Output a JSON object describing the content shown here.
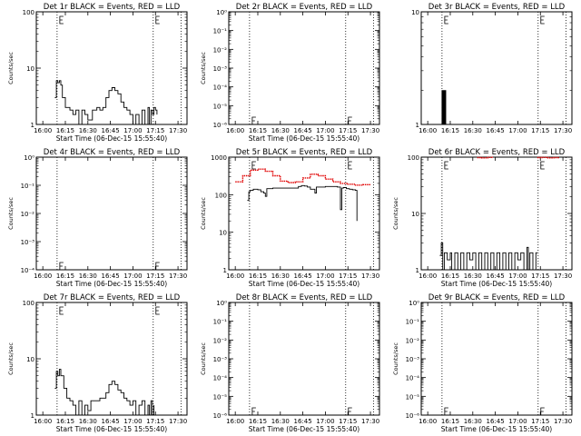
{
  "x_tick_labels": [
    "16:00",
    "16:15",
    "16:30",
    "16:45",
    "17:00",
    "17:15",
    "17:30"
  ],
  "colors": {
    "events": "#000000",
    "lld": "#e00000",
    "background": "#ffffff",
    "axes": "#000000"
  },
  "chart_data": [
    {
      "id": "det1r",
      "type": "line",
      "title": "Det 1r BLACK = Events, RED = LLD",
      "xlabel": "Start Time (06-Dec-15 15:55:40)",
      "ylabel": "Counts/sec",
      "xlim": [
        "15:55:40",
        "17:36:00"
      ],
      "ylim": [
        1,
        100
      ],
      "yscale": "log",
      "y_tick_labels": [
        "1",
        "10",
        "100"
      ],
      "x_tick_labels": [
        "16:00",
        "16:15",
        "16:30",
        "16:45",
        "17:00",
        "17:15",
        "17:30"
      ],
      "vlines": [
        "16:09:30",
        "17:13:30",
        "17:32:00"
      ],
      "series": [
        {
          "color": "events",
          "points": [
            [
              "16:08",
              3
            ],
            [
              "16:09",
              6
            ],
            [
              "16:10",
              5.5
            ],
            [
              "16:11",
              6
            ],
            [
              "16:12",
              5
            ],
            [
              "16:13",
              3
            ],
            [
              "16:15",
              2
            ],
            [
              "16:18",
              1.8
            ],
            [
              "16:20",
              1.5
            ],
            [
              "16:22",
              1.8
            ],
            [
              "16:24",
              1
            ],
            [
              "16:26",
              1.8
            ],
            [
              "16:28",
              1.5
            ],
            [
              "16:30",
              1.2
            ],
            [
              "16:33",
              1.8
            ],
            [
              "16:36",
              2
            ],
            [
              "16:38",
              1.8
            ],
            [
              "16:40",
              2
            ],
            [
              "16:42",
              3
            ],
            [
              "16:44",
              4
            ],
            [
              "16:46",
              4.5
            ],
            [
              "16:48",
              4
            ],
            [
              "16:50",
              3.5
            ],
            [
              "16:52",
              2.5
            ],
            [
              "16:54",
              2
            ],
            [
              "16:56",
              1.8
            ],
            [
              "16:58",
              1.5
            ],
            [
              "17:00",
              1
            ],
            [
              "17:02",
              1.5
            ],
            [
              "17:04",
              1
            ],
            [
              "17:06",
              1.8
            ],
            [
              "17:08",
              1
            ],
            [
              "17:10",
              2
            ],
            [
              "17:11",
              1
            ],
            [
              "17:12",
              1.8
            ],
            [
              "17:13",
              1.5
            ],
            [
              "17:14",
              2
            ],
            [
              "17:15",
              1.8
            ],
            [
              "17:16",
              1.5
            ]
          ]
        }
      ]
    },
    {
      "id": "det2r",
      "type": "line",
      "title": "Det 2r BLACK = Events, RED = LLD",
      "xlabel": "Start Time (06-Dec-15 15:55:40)",
      "ylabel": "Counts/sec",
      "xlim": [
        "15:55:40",
        "17:36:00"
      ],
      "ylim": [
        1,
        1e-06
      ],
      "yscale": "log",
      "y_tick_labels": [
        "10⁻⁶",
        "10⁻⁵",
        "10⁻⁴",
        "10⁻³",
        "10⁻²",
        "10⁻¹",
        "10⁰"
      ],
      "x_tick_labels": [
        "16:00",
        "16:15",
        "16:30",
        "16:45",
        "17:00",
        "17:15",
        "17:30"
      ],
      "vlines": [
        "16:09:30",
        "17:13:30",
        "17:32:00"
      ],
      "series": []
    },
    {
      "id": "det3r",
      "type": "line",
      "title": "Det 3r BLACK = Events, RED = LLD",
      "xlabel": "",
      "ylabel": "",
      "xlim": [
        "15:55:40",
        "17:36:00"
      ],
      "ylim": [
        1,
        10
      ],
      "yscale": "log",
      "y_tick_labels": [
        "1",
        "10"
      ],
      "x_tick_labels": [
        "16:00",
        "16:15",
        "16:30",
        "16:45",
        "17:00",
        "17:15",
        "17:30"
      ],
      "vlines": [
        "16:09:30",
        "17:13:30",
        "17:32:00"
      ],
      "series": [
        {
          "color": "events",
          "points": [
            [
              "16:09",
              1
            ],
            [
              "16:09:30",
              2
            ],
            [
              "16:10",
              1
            ],
            [
              "16:10:30",
              2
            ],
            [
              "16:11",
              1
            ],
            [
              "16:11:30",
              2
            ],
            [
              "16:12",
              1
            ]
          ]
        }
      ]
    },
    {
      "id": "det4r",
      "type": "line",
      "title": "Det 4r BLACK = Events, RED = LLD",
      "xlabel": "Start Time (06-Dec-15 15:55:40)",
      "ylabel": "Counts/sec",
      "xlim": [
        "15:55:40",
        "17:36:00"
      ],
      "ylim": [
        1,
        0.0001
      ],
      "yscale": "log",
      "y_tick_labels": [
        "10⁻⁴",
        "10⁻³",
        "10⁻²",
        "10⁻¹",
        "10⁰"
      ],
      "x_tick_labels": [
        "16:00",
        "16:15",
        "16:30",
        "16:45",
        "17:00",
        "17:15",
        "17:30"
      ],
      "vlines": [
        "16:09:30",
        "17:13:30",
        "17:32:00"
      ],
      "series": []
    },
    {
      "id": "det5r",
      "type": "line",
      "title": "Det 5r BLACK = Events, RED = LLD",
      "xlabel": "Start Time (06-Dec-15 15:55:40)",
      "ylabel": "Counts/sec",
      "xlim": [
        "15:55:40",
        "17:36:00"
      ],
      "ylim": [
        1,
        1000
      ],
      "yscale": "log",
      "y_tick_labels": [
        "1",
        "10",
        "100",
        "1000"
      ],
      "x_tick_labels": [
        "16:00",
        "16:15",
        "16:30",
        "16:45",
        "17:00",
        "17:15",
        "17:30"
      ],
      "vlines": [
        "16:09:30",
        "17:13:30",
        "17:32:00"
      ],
      "series": [
        {
          "color": "lld",
          "points": [
            [
              "16:00",
              220
            ],
            [
              "16:05",
              320
            ],
            [
              "16:10",
              450
            ],
            [
              "16:15",
              480
            ],
            [
              "16:20",
              420
            ],
            [
              "16:25",
              320
            ],
            [
              "16:30",
              230
            ],
            [
              "16:35",
              210
            ],
            [
              "16:40",
              220
            ],
            [
              "16:45",
              280
            ],
            [
              "16:50",
              350
            ],
            [
              "16:55",
              320
            ],
            [
              "17:00",
              260
            ],
            [
              "17:05",
              220
            ],
            [
              "17:10",
              200
            ],
            [
              "17:15",
              190
            ],
            [
              "17:20",
              180
            ],
            [
              "17:25",
              185
            ],
            [
              "17:30",
              190
            ]
          ]
        },
        {
          "color": "events",
          "points": [
            [
              "16:08",
              70
            ],
            [
              "16:09",
              120
            ],
            [
              "16:10",
              130
            ],
            [
              "16:12",
              140
            ],
            [
              "16:15",
              135
            ],
            [
              "16:17",
              120
            ],
            [
              "16:19",
              110
            ],
            [
              "16:20",
              90
            ],
            [
              "16:21",
              145
            ],
            [
              "16:25",
              150
            ],
            [
              "16:30",
              150
            ],
            [
              "16:35",
              150
            ],
            [
              "16:38",
              150
            ],
            [
              "16:40",
              150
            ],
            [
              "16:42",
              165
            ],
            [
              "16:44",
              175
            ],
            [
              "16:46",
              170
            ],
            [
              "16:48",
              160
            ],
            [
              "16:50",
              140
            ],
            [
              "16:53",
              110
            ],
            [
              "16:54",
              160
            ],
            [
              "17:00",
              165
            ],
            [
              "17:05",
              165
            ],
            [
              "17:08",
              160
            ],
            [
              "17:10",
              40
            ],
            [
              "17:11",
              150
            ],
            [
              "17:12",
              155
            ],
            [
              "17:14",
              145
            ],
            [
              "17:16",
              140
            ],
            [
              "17:18",
              135
            ],
            [
              "17:20",
              130
            ],
            [
              "17:21",
              20
            ]
          ]
        }
      ]
    },
    {
      "id": "det6r",
      "type": "line",
      "title": "Det 6r BLACK = Events, RED = LLD",
      "xlabel": "Start Time (06-Dec-15 15:55:40)",
      "ylabel": "Counts/sec",
      "xlim": [
        "15:55:40",
        "17:36:00"
      ],
      "ylim": [
        1,
        100
      ],
      "yscale": "log",
      "y_tick_labels": [
        "1",
        "10",
        "100"
      ],
      "x_tick_labels": [
        "16:00",
        "16:15",
        "16:30",
        "16:45",
        "17:00",
        "17:15",
        "17:30"
      ],
      "vlines": [
        "16:09:30",
        "17:13:30",
        "17:32:00"
      ],
      "series": [
        {
          "color": "lld",
          "points": [
            [
              "16:33",
              98
            ],
            [
              "16:36",
              97
            ],
            [
              "16:40",
              99
            ],
            [
              "16:43",
              98
            ]
          ]
        },
        {
          "color": "lld",
          "points": [
            [
              "17:13",
              98
            ],
            [
              "17:16",
              99
            ],
            [
              "17:20",
              97
            ],
            [
              "17:24",
              98
            ],
            [
              "17:27",
              99
            ]
          ]
        },
        {
          "color": "events",
          "points": [
            [
              "16:08",
              1.8
            ],
            [
              "16:09",
              3
            ],
            [
              "16:10",
              1
            ],
            [
              "16:11",
              2
            ],
            [
              "16:13",
              1.5
            ],
            [
              "16:15",
              2
            ],
            [
              "16:16",
              1
            ],
            [
              "16:18",
              2
            ],
            [
              "16:20",
              1
            ],
            [
              "16:22",
              2
            ],
            [
              "16:24",
              1
            ],
            [
              "16:26",
              2
            ],
            [
              "16:28",
              1.5
            ],
            [
              "16:30",
              2
            ],
            [
              "16:32",
              1
            ],
            [
              "16:34",
              2
            ],
            [
              "16:36",
              1
            ],
            [
              "16:38",
              2
            ],
            [
              "16:40",
              1
            ],
            [
              "16:42",
              2
            ],
            [
              "16:44",
              1
            ],
            [
              "16:46",
              2
            ],
            [
              "16:48",
              1
            ],
            [
              "16:50",
              2
            ],
            [
              "16:52",
              1
            ],
            [
              "16:54",
              2
            ],
            [
              "16:56",
              1
            ],
            [
              "16:58",
              2
            ],
            [
              "17:00",
              1.5
            ],
            [
              "17:02",
              2
            ],
            [
              "17:04",
              1
            ],
            [
              "17:06",
              2.5
            ],
            [
              "17:07",
              1
            ],
            [
              "17:08",
              2
            ],
            [
              "17:10",
              1
            ],
            [
              "17:12",
              2
            ],
            [
              "17:13",
              2
            ]
          ]
        }
      ]
    },
    {
      "id": "det7r",
      "type": "line",
      "title": "Det 7r BLACK = Events, RED = LLD",
      "xlabel": "Start Time (06-Dec-15 15:55:40)",
      "ylabel": "Counts/sec",
      "xlim": [
        "15:55:40",
        "17:36:00"
      ],
      "ylim": [
        1,
        100
      ],
      "yscale": "log",
      "y_tick_labels": [
        "1",
        "10",
        "100"
      ],
      "x_tick_labels": [
        "16:00",
        "16:15",
        "16:30",
        "16:45",
        "17:00",
        "17:15",
        "17:30"
      ],
      "vlines": [
        "16:09:30",
        "17:13:30",
        "17:32:00"
      ],
      "series": [
        {
          "color": "events",
          "points": [
            [
              "16:08",
              3
            ],
            [
              "16:09",
              6
            ],
            [
              "16:10",
              5
            ],
            [
              "16:11",
              6.5
            ],
            [
              "16:12",
              5
            ],
            [
              "16:14",
              3
            ],
            [
              "16:16",
              2
            ],
            [
              "16:18",
              1.8
            ],
            [
              "16:20",
              1.5
            ],
            [
              "16:22",
              1
            ],
            [
              "16:24",
              1.8
            ],
            [
              "16:26",
              1
            ],
            [
              "16:28",
              1.5
            ],
            [
              "16:30",
              1.2
            ],
            [
              "16:32",
              1.8
            ],
            [
              "16:35",
              1.8
            ],
            [
              "16:38",
              2
            ],
            [
              "16:40",
              2
            ],
            [
              "16:42",
              2.5
            ],
            [
              "16:44",
              3.5
            ],
            [
              "16:46",
              4
            ],
            [
              "16:48",
              3.5
            ],
            [
              "16:50",
              2.8
            ],
            [
              "16:52",
              2.5
            ],
            [
              "16:54",
              2
            ],
            [
              "16:56",
              1.8
            ],
            [
              "16:58",
              1.5
            ],
            [
              "17:00",
              1.8
            ],
            [
              "17:02",
              1
            ],
            [
              "17:04",
              1.5
            ],
            [
              "17:06",
              1.8
            ],
            [
              "17:08",
              1
            ],
            [
              "17:10",
              1.5
            ],
            [
              "17:11",
              1
            ],
            [
              "17:12",
              1.8
            ],
            [
              "17:13",
              1
            ],
            [
              "17:14",
              1.5
            ]
          ]
        }
      ]
    },
    {
      "id": "det8r",
      "type": "line",
      "title": "Det 8r BLACK = Events, RED = LLD",
      "xlabel": "Start Time (06-Dec-15 15:55:40)",
      "ylabel": "Counts/sec",
      "xlim": [
        "15:55:40",
        "17:36:00"
      ],
      "ylim": [
        1,
        1e-06
      ],
      "yscale": "log",
      "y_tick_labels": [
        "10⁻⁶",
        "10⁻⁵",
        "10⁻⁴",
        "10⁻³",
        "10⁻²",
        "10⁻¹",
        "10⁰"
      ],
      "x_tick_labels": [
        "16:00",
        "16:15",
        "16:30",
        "16:45",
        "17:00",
        "17:15",
        "17:30"
      ],
      "vlines": [
        "16:09:30",
        "17:13:30",
        "17:32:00"
      ],
      "series": []
    },
    {
      "id": "det9r",
      "type": "line",
      "title": "Det 9r BLACK = Events, RED = LLD",
      "xlabel": "Start Time (06-Dec-15 15:55:40)",
      "ylabel": "Counts/sec",
      "xlim": [
        "15:55:40",
        "17:36:00"
      ],
      "ylim": [
        1,
        1e-06
      ],
      "yscale": "log",
      "y_tick_labels": [
        "10⁻⁶",
        "10⁻⁵",
        "10⁻⁴",
        "10⁻³",
        "10⁻²",
        "10⁻¹",
        "10⁰"
      ],
      "x_tick_labels": [
        "16:00",
        "16:15",
        "16:30",
        "16:45",
        "17:00",
        "17:15",
        "17:30"
      ],
      "vlines": [
        "16:09:30",
        "17:13:30",
        "17:32:00"
      ],
      "series": []
    }
  ]
}
